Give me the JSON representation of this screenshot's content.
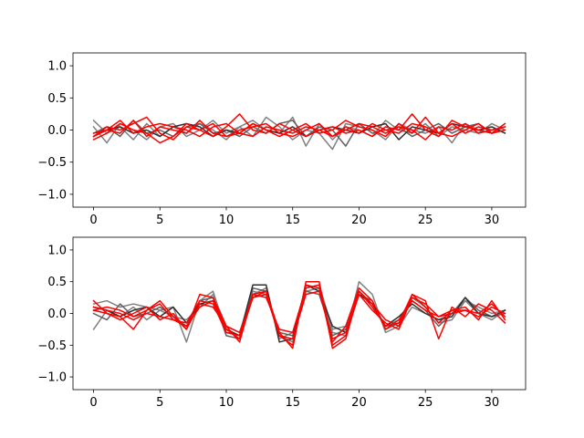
{
  "chart_data": [
    {
      "type": "line",
      "xlim": [
        -1.55,
        32.55
      ],
      "ylim": [
        -1.2,
        1.2
      ],
      "xticks": [
        0,
        5,
        10,
        15,
        20,
        25,
        30
      ],
      "yticks": [
        -1.0,
        -0.5,
        0.0,
        0.5,
        1.0
      ],
      "xtick_labels": [
        "0",
        "5",
        "10",
        "15",
        "20",
        "25",
        "30"
      ],
      "ytick_labels": [
        "−1.0",
        "−0.5",
        "0.0",
        "0.5",
        "1.0"
      ],
      "x": [
        0,
        1,
        2,
        3,
        4,
        5,
        6,
        7,
        8,
        9,
        10,
        11,
        12,
        13,
        14,
        15,
        16,
        17,
        18,
        19,
        20,
        21,
        22,
        23,
        24,
        25,
        26,
        27,
        28,
        29,
        30,
        31
      ],
      "series": [
        {
          "color": "#808080",
          "values": [
            0.15,
            -0.05,
            0.05,
            -0.15,
            0.1,
            -0.1,
            0.05,
            -0.05,
            0.1,
            0.0,
            -0.15,
            0.05,
            0.15,
            0.0,
            -0.05,
            0.2,
            -0.25,
            0.1,
            -0.15,
            0.05,
            0.0,
            -0.1,
            0.15,
            0.0,
            -0.05,
            0.1,
            -0.1,
            0.05,
            0.0,
            -0.05,
            0.1,
            0.0
          ]
        },
        {
          "color": "#808080",
          "values": [
            0.05,
            -0.2,
            0.1,
            0.0,
            -0.15,
            0.05,
            0.1,
            -0.1,
            0.0,
            0.15,
            -0.05,
            0.05,
            -0.1,
            0.2,
            0.05,
            -0.15,
            0.0,
            -0.05,
            -0.3,
            0.1,
            0.05,
            0.0,
            -0.15,
            0.1,
            0.0,
            -0.05,
            0.05,
            -0.2,
            0.1,
            0.0,
            -0.05,
            0.05
          ]
        },
        {
          "color": "#606060",
          "values": [
            -0.05,
            0.05,
            -0.1,
            0.15,
            -0.05,
            0.0,
            -0.1,
            0.05,
            0.1,
            -0.05,
            0.0,
            -0.1,
            0.05,
            -0.05,
            0.1,
            0.15,
            -0.1,
            0.05,
            0.0,
            -0.25,
            0.1,
            -0.05,
            0.0,
            0.05,
            -0.1,
            0.0,
            0.1,
            -0.05,
            0.05,
            0.1,
            -0.05,
            0.0
          ]
        },
        {
          "color": "#303030",
          "values": [
            -0.1,
            0.0,
            0.05,
            -0.05,
            0.0,
            -0.1,
            0.05,
            0.1,
            0.05,
            -0.1,
            0.0,
            -0.05,
            0.1,
            0.0,
            -0.05,
            0.05,
            -0.1,
            0.0,
            0.05,
            0.0,
            -0.05,
            0.05,
            0.1,
            -0.15,
            0.05,
            0.0,
            -0.05,
            0.1,
            0.05,
            0.0,
            0.05,
            -0.05
          ]
        },
        {
          "color": "#ff0000",
          "values": [
            -0.1,
            0.05,
            0.0,
            0.1,
            0.2,
            -0.05,
            -0.15,
            0.05,
            0.0,
            -0.1,
            0.05,
            0.25,
            0.0,
            -0.05,
            0.1,
            0.0,
            -0.1,
            0.0,
            0.05,
            -0.05,
            0.0,
            -0.1,
            0.05,
            0.0,
            0.25,
            0.0,
            -0.1,
            0.15,
            0.05,
            0.0,
            -0.05,
            0.0
          ]
        },
        {
          "color": "#ff0000",
          "values": [
            -0.15,
            -0.05,
            0.1,
            0.0,
            -0.05,
            -0.2,
            -0.1,
            0.1,
            0.0,
            0.1,
            -0.1,
            -0.05,
            0.1,
            0.0,
            -0.1,
            0.0,
            0.1,
            -0.05,
            0.0,
            0.15,
            0.05,
            0.0,
            -0.1,
            0.1,
            -0.05,
            0.2,
            -0.05,
            -0.1,
            0.0,
            0.1,
            -0.05,
            0.1
          ]
        },
        {
          "color": "#ff0000",
          "values": [
            -0.05,
            0.0,
            -0.05,
            0.15,
            -0.1,
            0.05,
            0.0,
            -0.05,
            0.15,
            -0.05,
            -0.1,
            0.0,
            0.05,
            0.1,
            -0.05,
            -0.1,
            0.0,
            0.1,
            -0.1,
            0.0,
            0.1,
            0.05,
            -0.05,
            0.05,
            0.0,
            -0.15,
            0.05,
            0.0,
            0.1,
            -0.05,
            0.0,
            0.05
          ]
        },
        {
          "color": "#ff0000",
          "values": [
            -0.1,
            0.0,
            0.15,
            -0.05,
            0.05,
            0.1,
            0.05,
            0.0,
            -0.1,
            0.05,
            0.1,
            -0.05,
            -0.1,
            0.05,
            0.0,
            -0.05,
            0.05,
            0.0,
            -0.1,
            0.05,
            -0.05,
            0.1,
            0.0,
            -0.05,
            0.1,
            0.05,
            -0.05,
            0.1,
            -0.05,
            0.05,
            0.0,
            0.05
          ]
        }
      ]
    },
    {
      "type": "line",
      "xlim": [
        -1.55,
        32.55
      ],
      "ylim": [
        -1.2,
        1.2
      ],
      "xticks": [
        0,
        5,
        10,
        15,
        20,
        25,
        30
      ],
      "yticks": [
        -1.0,
        -0.5,
        0.0,
        0.5,
        1.0
      ],
      "xtick_labels": [
        "0",
        "5",
        "10",
        "15",
        "20",
        "25",
        "30"
      ],
      "ytick_labels": [
        "−1.0",
        "−0.5",
        "0.0",
        "0.5",
        "1.0"
      ],
      "x": [
        0,
        1,
        2,
        3,
        4,
        5,
        6,
        7,
        8,
        9,
        10,
        11,
        12,
        13,
        14,
        15,
        16,
        17,
        18,
        19,
        20,
        21,
        22,
        23,
        24,
        25,
        26,
        27,
        28,
        29,
        30,
        31
      ],
      "series": [
        {
          "color": "#808080",
          "values": [
            -0.25,
            0.05,
            -0.05,
            0.1,
            -0.1,
            0.05,
            0.1,
            -0.45,
            0.2,
            0.35,
            -0.3,
            -0.35,
            0.3,
            0.4,
            -0.4,
            -0.3,
            0.35,
            0.4,
            -0.3,
            -0.35,
            0.5,
            0.3,
            -0.3,
            -0.2,
            0.1,
            0.0,
            -0.1,
            0.0,
            0.2,
            0.0,
            -0.1,
            0.05
          ]
        },
        {
          "color": "#808080",
          "values": [
            0.15,
            0.2,
            0.1,
            0.15,
            0.1,
            0.05,
            -0.05,
            -0.1,
            0.1,
            0.3,
            -0.2,
            -0.3,
            0.35,
            0.3,
            -0.35,
            -0.45,
            0.4,
            0.45,
            -0.25,
            -0.2,
            0.35,
            0.15,
            -0.2,
            -0.1,
            0.25,
            0.1,
            -0.15,
            -0.1,
            0.2,
            0.1,
            0.0,
            0.05
          ]
        },
        {
          "color": "#606060",
          "values": [
            0.0,
            -0.1,
            0.15,
            -0.05,
            0.0,
            0.1,
            -0.05,
            -0.2,
            0.2,
            0.25,
            -0.35,
            -0.4,
            0.4,
            0.35,
            -0.3,
            -0.35,
            0.35,
            0.3,
            -0.35,
            -0.25,
            0.3,
            0.2,
            -0.25,
            -0.15,
            0.2,
            0.05,
            -0.2,
            0.0,
            0.25,
            0.05,
            -0.05,
            0.0
          ]
        },
        {
          "color": "#303030",
          "values": [
            0.1,
            0.05,
            -0.05,
            0.05,
            0.1,
            -0.05,
            0.1,
            -0.15,
            0.15,
            0.2,
            -0.25,
            -0.35,
            0.45,
            0.45,
            -0.45,
            -0.4,
            0.45,
            0.35,
            -0.2,
            -0.3,
            0.3,
            0.15,
            -0.2,
            -0.05,
            0.15,
            0.0,
            -0.1,
            -0.05,
            0.25,
            0.0,
            -0.05,
            0.05
          ]
        },
        {
          "color": "#ff0000",
          "values": [
            0.2,
            0.0,
            -0.05,
            -0.25,
            0.05,
            0.2,
            -0.05,
            -0.25,
            0.3,
            0.25,
            -0.2,
            -0.45,
            0.3,
            0.35,
            -0.3,
            -0.55,
            0.5,
            0.5,
            -0.55,
            -0.4,
            0.35,
            0.1,
            -0.2,
            -0.15,
            0.3,
            0.2,
            -0.4,
            0.1,
            -0.05,
            0.15,
            0.05,
            -0.15
          ]
        },
        {
          "color": "#ff0000",
          "values": [
            0.05,
            0.1,
            0.05,
            -0.05,
            0.05,
            0.15,
            -0.1,
            -0.2,
            0.1,
            0.2,
            -0.25,
            -0.4,
            0.25,
            0.3,
            -0.35,
            -0.5,
            0.45,
            0.4,
            -0.5,
            -0.35,
            0.3,
            0.05,
            -0.15,
            -0.25,
            0.25,
            0.15,
            -0.05,
            0.05,
            0.1,
            -0.1,
            0.2,
            -0.1
          ]
        },
        {
          "color": "#ff0000",
          "values": [
            0.1,
            0.05,
            0.0,
            -0.1,
            0.0,
            -0.05,
            -0.1,
            -0.15,
            0.2,
            0.15,
            -0.3,
            -0.35,
            0.3,
            0.25,
            -0.25,
            -0.3,
            0.4,
            0.45,
            -0.45,
            -0.2,
            0.4,
            0.2,
            -0.25,
            -0.1,
            0.2,
            0.05,
            -0.05,
            0.0,
            0.05,
            -0.05,
            0.1,
            0.0
          ]
        },
        {
          "color": "#ff0000",
          "values": [
            0.05,
            0.0,
            -0.1,
            0.0,
            0.1,
            -0.1,
            0.0,
            -0.25,
            0.15,
            0.1,
            -0.2,
            -0.3,
            0.25,
            0.35,
            -0.35,
            -0.4,
            0.3,
            0.35,
            -0.4,
            -0.3,
            0.35,
            0.15,
            -0.1,
            -0.2,
            0.3,
            0.1,
            -0.15,
            0.05,
            0.05,
            0.0,
            0.15,
            -0.05
          ]
        }
      ]
    }
  ]
}
